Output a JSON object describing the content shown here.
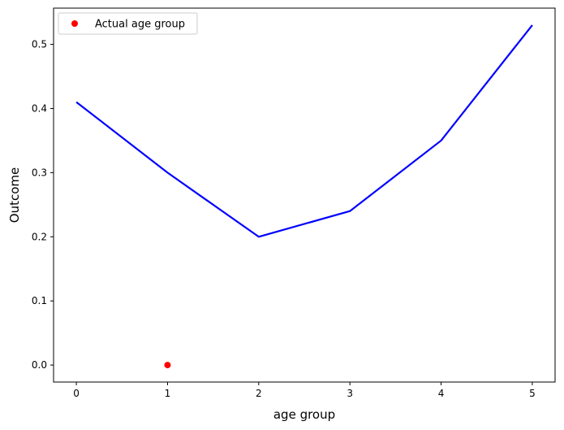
{
  "chart_data": {
    "type": "line",
    "title": "",
    "xlabel": "age group",
    "ylabel": "Outcome",
    "xlim": [
      -0.25,
      5.25
    ],
    "ylim": [
      -0.0265,
      0.5565
    ],
    "xticks": [
      0,
      1,
      2,
      3,
      4,
      5
    ],
    "xtick_labels": [
      "0",
      "1",
      "2",
      "3",
      "4",
      "5"
    ],
    "yticks": [
      0.0,
      0.1,
      0.2,
      0.3,
      0.4,
      0.5
    ],
    "ytick_labels": [
      "0.0",
      "0.1",
      "0.2",
      "0.3",
      "0.4",
      "0.5"
    ],
    "grid": false,
    "legend": {
      "placement": "top-left",
      "entries": [
        "Actual age group"
      ]
    },
    "series": [
      {
        "type": "line",
        "color": "#0000ff",
        "x": [
          0,
          1,
          2,
          3,
          4,
          5
        ],
        "y": [
          0.41,
          0.3,
          0.2,
          0.24,
          0.35,
          0.53
        ]
      },
      {
        "name": "Actual age group",
        "type": "scatter",
        "color": "#ff0000",
        "x": [
          1
        ],
        "y": [
          0.0
        ]
      }
    ]
  }
}
